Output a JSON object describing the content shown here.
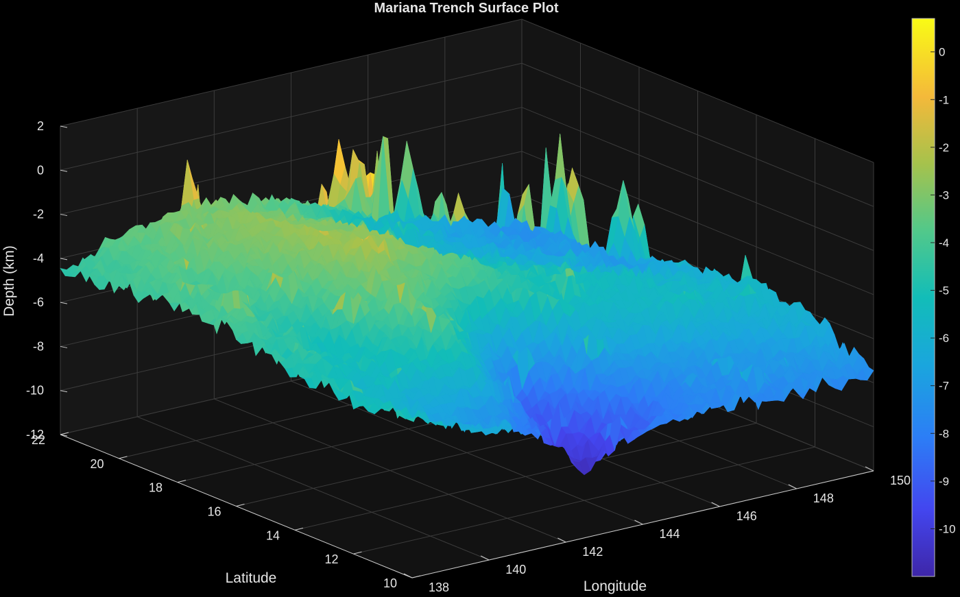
{
  "chart_data": {
    "type": "surface",
    "title": "Mariana Trench Surface Plot",
    "xlabel": "Longitude",
    "ylabel": "Latitude",
    "zlabel": "Depth (km)",
    "x_ticks": [
      138,
      140,
      142,
      144,
      146,
      148,
      150
    ],
    "y_ticks": [
      10,
      12,
      14,
      16,
      18,
      20,
      22
    ],
    "z_ticks": [
      -12,
      -10,
      -8,
      -6,
      -4,
      -2,
      0,
      2
    ],
    "xlim": [
      138,
      150
    ],
    "ylim": [
      10,
      22
    ],
    "zlim": [
      -12,
      2
    ],
    "grid": true,
    "colormap": "parula",
    "colorbar": {
      "location": "right",
      "ticks": [
        0,
        -1,
        -2,
        -3,
        -4,
        -5,
        -6,
        -7,
        -8,
        -9,
        -10
      ],
      "range": [
        -11,
        0.7
      ]
    },
    "surface_samples": {
      "description_grid": "depth in km sampled on longitude x latitude grid",
      "longitude": [
        138,
        140,
        142,
        144,
        146,
        148,
        150
      ],
      "latitude": [
        10,
        12,
        14,
        16,
        18,
        20,
        22
      ],
      "depth": [
        [
          -4.5,
          -6.0,
          -6.5,
          -7.0,
          -7.5,
          -7.6,
          -7.6
        ],
        [
          -5.0,
          -6.5,
          -7.5,
          -10.5,
          -8.0,
          -7.0,
          -6.0
        ],
        [
          -4.8,
          -5.5,
          -4.0,
          -9.0,
          -6.0,
          -5.5,
          -5.8
        ],
        [
          -4.2,
          -5.0,
          -3.0,
          -4.0,
          -5.0,
          -5.5,
          -6.0
        ],
        [
          -4.0,
          -4.0,
          -2.5,
          -2.5,
          -5.0,
          -6.0,
          -7.0
        ],
        [
          -4.2,
          -3.5,
          -2.5,
          -3.5,
          -5.5,
          -6.5,
          -7.2
        ],
        [
          -4.5,
          -3.5,
          -3.0,
          -4.0,
          -5.5,
          -6.5,
          -7.5
        ]
      ]
    }
  }
}
